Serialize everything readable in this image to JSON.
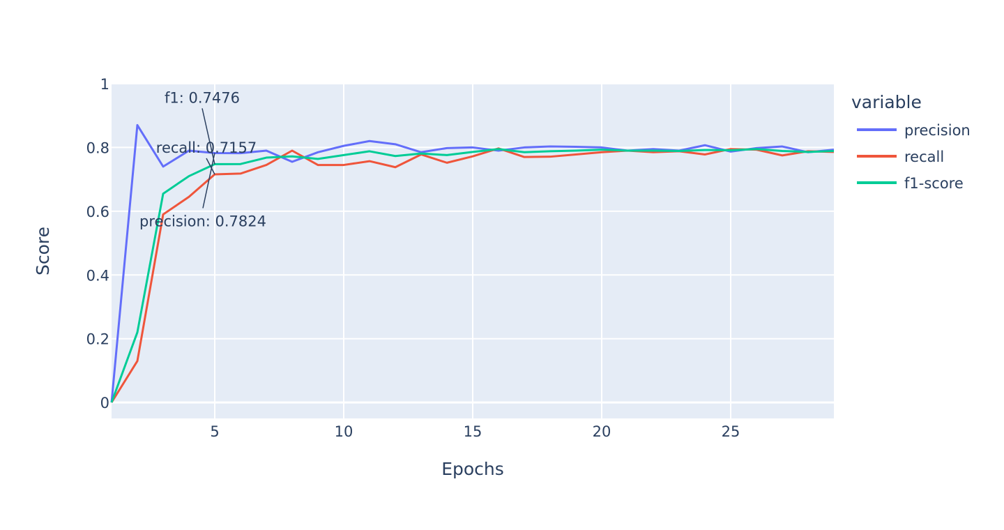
{
  "chart_data": {
    "type": "line",
    "xlabel": "Epochs",
    "ylabel": "Score",
    "xlim": [
      1,
      29
    ],
    "ylim": [
      -0.05,
      1.0
    ],
    "x_ticks": [
      5,
      10,
      15,
      20,
      25
    ],
    "y_ticks": [
      0,
      0.2,
      0.4,
      0.6,
      0.8,
      1
    ],
    "y_tick_labels": [
      "0",
      "0.2",
      "0.4",
      "0.6",
      "0.8",
      "1"
    ],
    "grid": true,
    "legend": {
      "title": "variable",
      "position": "right"
    },
    "x": [
      1,
      2,
      3,
      4,
      5,
      6,
      7,
      8,
      9,
      10,
      11,
      12,
      13,
      14,
      15,
      16,
      17,
      18,
      19,
      20,
      21,
      22,
      23,
      24,
      25,
      26,
      27,
      28,
      29
    ],
    "series": [
      {
        "name": "precision",
        "color": "#636efa",
        "values": [
          0.0,
          0.87,
          0.74,
          0.79,
          0.7824,
          0.782,
          0.79,
          0.755,
          0.785,
          0.805,
          0.82,
          0.81,
          0.785,
          0.798,
          0.8,
          0.79,
          0.8,
          0.803,
          0.802,
          0.8,
          0.79,
          0.795,
          0.79,
          0.807,
          0.787,
          0.798,
          0.803,
          0.785,
          0.793
        ]
      },
      {
        "name": "recall",
        "color": "#ef553b",
        "values": [
          0.0,
          0.13,
          0.59,
          0.645,
          0.7157,
          0.718,
          0.745,
          0.79,
          0.745,
          0.745,
          0.757,
          0.738,
          0.778,
          0.752,
          0.772,
          0.797,
          0.77,
          0.771,
          0.778,
          0.785,
          0.79,
          0.785,
          0.788,
          0.778,
          0.795,
          0.793,
          0.775,
          0.788,
          0.786
        ]
      },
      {
        "name": "f1-score",
        "color": "#00cc96",
        "values": [
          0.0,
          0.22,
          0.655,
          0.71,
          0.7476,
          0.748,
          0.768,
          0.772,
          0.764,
          0.776,
          0.788,
          0.773,
          0.781,
          0.776,
          0.786,
          0.795,
          0.785,
          0.788,
          0.79,
          0.793,
          0.79,
          0.79,
          0.789,
          0.792,
          0.791,
          0.795,
          0.789,
          0.786,
          0.789
        ]
      }
    ],
    "annotations": [
      {
        "text": "f1: 0.7476",
        "x": 5,
        "y": 0.7476,
        "anchor": "above"
      },
      {
        "text": "recall: 0.7157",
        "x": 5,
        "y": 0.7157,
        "anchor": "above"
      },
      {
        "text": "precision: 0.7824",
        "x": 5,
        "y": 0.7824,
        "anchor": "below"
      }
    ]
  }
}
